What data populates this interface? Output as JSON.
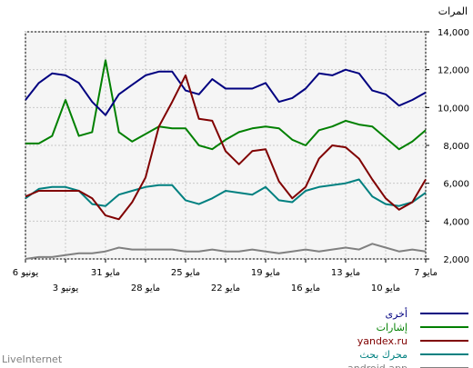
{
  "chart_data": {
    "type": "line",
    "ylabel": "المرات",
    "ylim": [
      2000,
      14000
    ],
    "yticks": [
      2000,
      4000,
      6000,
      8000,
      10000,
      12000,
      14000
    ],
    "ytick_labels": [
      "2,000",
      "4,000",
      "6,000",
      "8,000",
      "10,000",
      "12,000",
      "14,000"
    ],
    "grid": true,
    "x_direction": "right-to-left",
    "xtick_labels_row1": [
      {
        "i": 0,
        "label": "7 مايو"
      },
      {
        "i": 6,
        "label": "13 مايو"
      },
      {
        "i": 12,
        "label": "19 مايو"
      },
      {
        "i": 18,
        "label": "25 مايو"
      },
      {
        "i": 24,
        "label": "31 مايو"
      },
      {
        "i": 30,
        "label": "6 يونيو"
      }
    ],
    "xtick_labels_row2": [
      {
        "i": 3,
        "label": "10 مايو"
      },
      {
        "i": 9,
        "label": "16 مايو"
      },
      {
        "i": 15,
        "label": "22 مايو"
      },
      {
        "i": 21,
        "label": "28 مايو"
      },
      {
        "i": 27,
        "label": "3 يونيو"
      }
    ],
    "series": [
      {
        "name": "أخرى",
        "color": "#000080",
        "values": [
          10800,
          10400,
          10100,
          10700,
          10900,
          11800,
          12000,
          11700,
          11800,
          11000,
          10500,
          10300,
          11300,
          11000,
          11000,
          11000,
          11500,
          10700,
          10900,
          11900,
          11900,
          11700,
          11200,
          10700,
          9600,
          10300,
          11300,
          11700,
          11800,
          11300,
          10400
        ]
      },
      {
        "name": "إشارات",
        "color": "#008000",
        "values": [
          8800,
          8200,
          7800,
          8400,
          9000,
          9100,
          9300,
          9000,
          8800,
          8000,
          8300,
          8900,
          9000,
          8900,
          8700,
          8300,
          7800,
          8000,
          8900,
          8900,
          9000,
          8600,
          8200,
          8700,
          12500,
          8700,
          8500,
          10400,
          8500,
          8100,
          8100
        ]
      },
      {
        "name": "yandex.ru",
        "color": "#800000",
        "values": [
          6200,
          5000,
          4600,
          5200,
          6200,
          7300,
          7900,
          8000,
          7300,
          5800,
          5200,
          6100,
          7800,
          7700,
          7000,
          7700,
          9300,
          9400,
          11700,
          10300,
          9000,
          6300,
          5000,
          4100,
          4300,
          5200,
          5600,
          5600,
          5600,
          5600,
          5300
        ]
      },
      {
        "name": "محرك بحث",
        "color": "#008080",
        "values": [
          5500,
          5000,
          4800,
          4900,
          5300,
          6200,
          6000,
          5900,
          5800,
          5600,
          5000,
          5100,
          5800,
          5400,
          5500,
          5600,
          5200,
          4900,
          5100,
          5900,
          5900,
          5800,
          5600,
          5400,
          4800,
          4900,
          5600,
          5800,
          5800,
          5700,
          5200
        ]
      },
      {
        "name": "android.app",
        "color": "#808080",
        "values": [
          2400,
          2500,
          2400,
          2600,
          2800,
          2500,
          2600,
          2500,
          2400,
          2500,
          2400,
          2300,
          2400,
          2500,
          2400,
          2400,
          2500,
          2400,
          2400,
          2500,
          2500,
          2500,
          2500,
          2600,
          2400,
          2300,
          2300,
          2200,
          2100,
          2100,
          2000
        ]
      }
    ]
  },
  "footer": {
    "brand": "LiveInternet"
  }
}
